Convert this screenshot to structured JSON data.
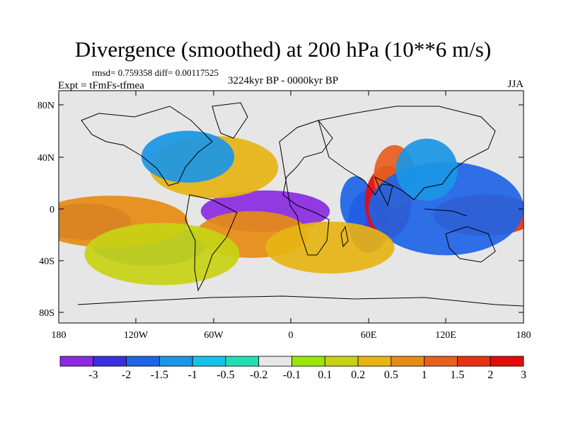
{
  "title": "Divergence (smoothed) at 200 hPa (10**6 m/s)",
  "stats": "rmsd= 0.759358 diff= 0.00117525",
  "experiment": "Expt = tFmFs-tfmea",
  "period": "3224kyr BP - 0000kyr BP",
  "season": "JJA",
  "axes": {
    "lon_ticks": [
      "180",
      "120W",
      "60W",
      "0",
      "60E",
      "120E",
      "180"
    ],
    "lat_ticks": [
      "80N",
      "40N",
      "0",
      "40S",
      "80S"
    ]
  },
  "colorbar": {
    "colors": [
      "#8a2be2",
      "#3b2ee0",
      "#1e64e6",
      "#1a96e6",
      "#16c2e8",
      "#1ee0b4",
      "#e6e6e6",
      "#9be60a",
      "#c8d214",
      "#e6b414",
      "#e68c14",
      "#e6601e",
      "#e63214",
      "#e60a0a"
    ],
    "labels": [
      "-3",
      "-2",
      "-1.5",
      "-1",
      "-0.5",
      "-0.2",
      "-0.1",
      "0.1",
      "0.2",
      "0.5",
      "1",
      "1.5",
      "2",
      "3"
    ]
  },
  "anomaly_blobs": [
    {
      "lon": -20,
      "lat": -2,
      "rx": 25,
      "ry": 8,
      "level": 0
    },
    {
      "lon": -160,
      "lat": -10,
      "rx": 18,
      "ry": 7,
      "level": 1
    },
    {
      "lon": -110,
      "lat": -28,
      "rx": 22,
      "ry": 8,
      "level": 2
    },
    {
      "lon": 60,
      "lat": -10,
      "rx": 8,
      "ry": 12,
      "level": 1
    },
    {
      "lon": 50,
      "lat": 5,
      "rx": 6,
      "ry": 10,
      "level": 2
    },
    {
      "lon": 75,
      "lat": 5,
      "rx": 9,
      "ry": 14,
      "level": 13
    },
    {
      "lon": 80,
      "lat": 25,
      "rx": 8,
      "ry": 12,
      "level": 11
    },
    {
      "lon": -140,
      "lat": -10,
      "rx": 30,
      "ry": 10,
      "level": 10
    },
    {
      "lon": -60,
      "lat": 32,
      "rx": 25,
      "ry": 12,
      "level": 9
    },
    {
      "lon": -30,
      "lat": -20,
      "rx": 22,
      "ry": 9,
      "level": 10
    },
    {
      "lon": 150,
      "lat": -5,
      "rx": 20,
      "ry": 8,
      "level": 12
    },
    {
      "lon": 120,
      "lat": 0,
      "rx": 30,
      "ry": 18,
      "level": 2
    },
    {
      "lon": 105,
      "lat": 30,
      "rx": 12,
      "ry": 12,
      "level": 3
    },
    {
      "lon": -80,
      "lat": 40,
      "rx": 18,
      "ry": 10,
      "level": 3
    },
    {
      "lon": -100,
      "lat": -35,
      "rx": 30,
      "ry": 12,
      "level": 8
    },
    {
      "lon": 30,
      "lat": -30,
      "rx": 25,
      "ry": 10,
      "level": 9
    }
  ]
}
